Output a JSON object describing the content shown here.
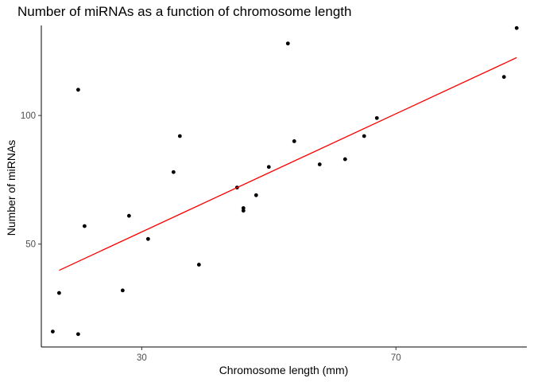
{
  "chart_data": {
    "type": "scatter",
    "title": "Number of miRNAs as a function of chromosome length",
    "xlabel": "Chromosome length (mm)",
    "ylabel": "Number of miRNAs",
    "xlim": [
      14.2,
      90.6
    ],
    "ylim": [
      10,
      135
    ],
    "xticks": [
      30,
      70
    ],
    "yticks": [
      50,
      100
    ],
    "grid": false,
    "legend": "none",
    "points": [
      {
        "x": 16,
        "y": 16
      },
      {
        "x": 17,
        "y": 31
      },
      {
        "x": 20,
        "y": 15
      },
      {
        "x": 20,
        "y": 110
      },
      {
        "x": 21,
        "y": 57
      },
      {
        "x": 27,
        "y": 32
      },
      {
        "x": 28,
        "y": 61
      },
      {
        "x": 31,
        "y": 52
      },
      {
        "x": 35,
        "y": 78
      },
      {
        "x": 36,
        "y": 92
      },
      {
        "x": 39,
        "y": 42
      },
      {
        "x": 45,
        "y": 72
      },
      {
        "x": 46,
        "y": 64
      },
      {
        "x": 46,
        "y": 63
      },
      {
        "x": 48,
        "y": 69
      },
      {
        "x": 50,
        "y": 80
      },
      {
        "x": 53,
        "y": 128
      },
      {
        "x": 54,
        "y": 90
      },
      {
        "x": 58,
        "y": 81
      },
      {
        "x": 62,
        "y": 83
      },
      {
        "x": 65,
        "y": 92
      },
      {
        "x": 67,
        "y": 99
      },
      {
        "x": 87,
        "y": 115
      },
      {
        "x": 89,
        "y": 134
      }
    ],
    "fit_line": {
      "x": [
        17,
        89
      ],
      "y": [
        39.8,
        122.5
      ],
      "color": "#ff0000"
    },
    "point_color": "#000000"
  }
}
